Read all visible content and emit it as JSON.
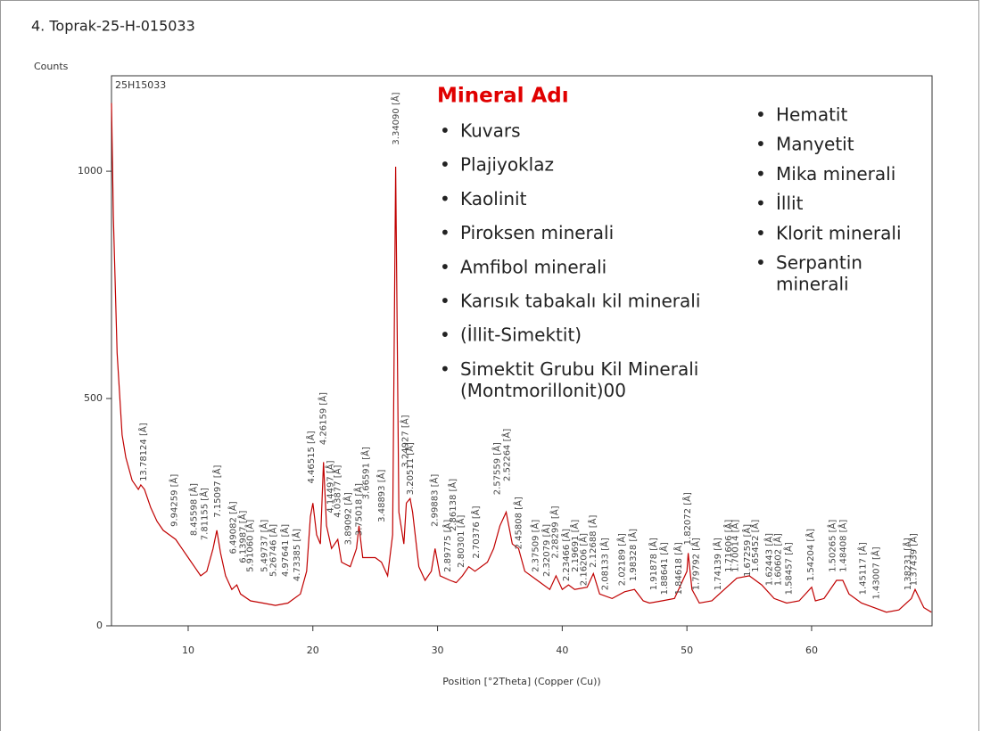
{
  "chart_data": {
    "type": "line",
    "title": "4. Toprak-25-H-015033",
    "y_label": "Counts",
    "x_label": "Position [°2Theta] (Copper (Cu))",
    "sample_label": "25H15033",
    "xlim": [
      3.85,
      69.66
    ],
    "ylim": [
      0,
      1210
    ],
    "xticks": [
      10,
      20,
      30,
      40,
      50,
      60
    ],
    "yticks": [
      0,
      500,
      1000
    ],
    "grid": false,
    "series": [
      {
        "name": "25H15033",
        "color": "#c00000",
        "x": [
          3.85,
          4.0,
          4.3,
          4.7,
          5,
          5.5,
          6,
          6.2,
          6.5,
          7,
          7.5,
          8,
          8.5,
          9,
          9.5,
          10,
          10.5,
          11,
          11.5,
          12,
          12.3,
          12.6,
          13,
          13.5,
          13.9,
          14.2,
          15,
          16,
          17,
          18,
          19,
          19.5,
          19.8,
          20,
          20.3,
          20.6,
          20.85,
          21.1,
          21.5,
          22,
          22.3,
          23,
          23.5,
          23.7,
          24,
          24.5,
          25,
          25.5,
          26,
          26.4,
          26.64,
          26.9,
          27.3,
          27.5,
          27.8,
          28,
          28.5,
          29,
          29.5,
          29.8,
          30.2,
          31,
          31.5,
          32,
          32.5,
          33,
          34,
          34.5,
          35,
          35.5,
          36,
          36.5,
          37,
          38,
          39,
          39.5,
          40,
          40.5,
          41,
          42,
          42.5,
          43,
          44,
          45,
          45.8,
          46.5,
          47,
          48,
          49,
          50,
          50.1,
          50.4,
          51,
          52,
          53,
          54,
          55,
          56,
          57,
          58,
          59,
          60,
          60.3,
          61,
          62,
          62.5,
          63,
          64,
          65,
          66,
          67,
          68,
          68.3,
          69,
          69.6
        ],
        "values": [
          1150,
          900,
          600,
          420,
          370,
          320,
          300,
          310,
          300,
          260,
          230,
          210,
          200,
          190,
          170,
          150,
          130,
          110,
          120,
          170,
          210,
          160,
          110,
          80,
          90,
          70,
          55,
          50,
          45,
          50,
          70,
          120,
          240,
          270,
          200,
          180,
          360,
          220,
          170,
          190,
          140,
          130,
          170,
          220,
          150,
          150,
          150,
          140,
          110,
          200,
          1010,
          250,
          180,
          270,
          280,
          250,
          130,
          100,
          120,
          170,
          110,
          100,
          95,
          110,
          130,
          120,
          140,
          170,
          220,
          250,
          180,
          170,
          120,
          100,
          80,
          110,
          80,
          90,
          80,
          85,
          115,
          70,
          60,
          75,
          80,
          55,
          50,
          55,
          60,
          120,
          160,
          80,
          50,
          55,
          80,
          105,
          110,
          90,
          60,
          50,
          55,
          85,
          55,
          60,
          100,
          100,
          70,
          50,
          40,
          30,
          35,
          60,
          80,
          40,
          30
        ]
      }
    ],
    "annotations": [
      {
        "text": "13.78124 [Å]",
        "x": 6.41,
        "y": 310
      },
      {
        "text": "9.94259 [Å]",
        "x": 8.89,
        "y": 210
      },
      {
        "text": "8.45598 [Å]",
        "x": 10.45,
        "y": 190
      },
      {
        "text": "7.81155 [Å]",
        "x": 11.32,
        "y": 180
      },
      {
        "text": "7.15097 [Å]",
        "x": 12.37,
        "y": 230
      },
      {
        "text": "6.49082 [Å]",
        "x": 13.63,
        "y": 150
      },
      {
        "text": "6.13987 [Å]",
        "x": 14.41,
        "y": 130
      },
      {
        "text": "5.91060 [Å]",
        "x": 14.98,
        "y": 110
      },
      {
        "text": "5.49737 [Å]",
        "x": 16.11,
        "y": 110
      },
      {
        "text": "5.26746 [Å]",
        "x": 16.82,
        "y": 100
      },
      {
        "text": "4.97641 [Å]",
        "x": 17.81,
        "y": 100
      },
      {
        "text": "4.73385 [Å]",
        "x": 18.73,
        "y": 90
      },
      {
        "text": "4.46515 [Å]",
        "x": 19.87,
        "y": 305
      },
      {
        "text": "4.26159 [Å]",
        "x": 20.83,
        "y": 390
      },
      {
        "text": "4.14497 [Å]",
        "x": 21.42,
        "y": 240
      },
      {
        "text": "4.03877 [Å]",
        "x": 21.99,
        "y": 230
      },
      {
        "text": "3.89092 [Å]",
        "x": 22.84,
        "y": 170
      },
      {
        "text": "3.75018 [Å]",
        "x": 23.71,
        "y": 190
      },
      {
        "text": "3.66591 [Å]",
        "x": 24.26,
        "y": 270
      },
      {
        "text": "3.48893 [Å]",
        "x": 25.51,
        "y": 220
      },
      {
        "text": "3.34090 [Å]",
        "x": 26.66,
        "y": 1050
      },
      {
        "text": "3.24927 [Å]",
        "x": 27.43,
        "y": 340
      },
      {
        "text": "3.20511 [Å]",
        "x": 27.81,
        "y": 280
      },
      {
        "text": "2.99883 [Å]",
        "x": 29.77,
        "y": 210
      },
      {
        "text": "2.89775 [Å]",
        "x": 30.83,
        "y": 110
      },
      {
        "text": "2.86138 [Å]",
        "x": 31.23,
        "y": 200
      },
      {
        "text": "2.80301 [Å]",
        "x": 31.9,
        "y": 120
      },
      {
        "text": "2.70376 [Å]",
        "x": 33.1,
        "y": 140
      },
      {
        "text": "2.57559 [Å]",
        "x": 34.8,
        "y": 280
      },
      {
        "text": "2.52264 [Å]",
        "x": 35.56,
        "y": 310
      },
      {
        "text": "2.45808 [Å]",
        "x": 36.52,
        "y": 160
      },
      {
        "text": "2.37509 [Å]",
        "x": 37.85,
        "y": 110
      },
      {
        "text": "2.32079 [Å]",
        "x": 38.77,
        "y": 100
      },
      {
        "text": "2.28299 [Å]",
        "x": 39.44,
        "y": 140
      },
      {
        "text": "2.23466 [Å]",
        "x": 40.33,
        "y": 90
      },
      {
        "text": "2.19691 [Å]",
        "x": 41.05,
        "y": 110
      },
      {
        "text": "2.16206 [Å]",
        "x": 41.74,
        "y": 80
      },
      {
        "text": "2.12688 [Å]",
        "x": 42.47,
        "y": 120
      },
      {
        "text": "2.08133 [Å]",
        "x": 43.44,
        "y": 70
      },
      {
        "text": "2.02189 [Å]",
        "x": 44.79,
        "y": 80
      },
      {
        "text": "1.98328 [Å]",
        "x": 45.71,
        "y": 90
      },
      {
        "text": "1.91878 [Å]",
        "x": 47.34,
        "y": 70
      },
      {
        "text": "1.88641 [Å]",
        "x": 48.2,
        "y": 60
      },
      {
        "text": "1.84618 [Å]",
        "x": 49.33,
        "y": 60
      },
      {
        "text": "1.82072 [Å]",
        "x": 50.06,
        "y": 170
      },
      {
        "text": "1.79792 [Å]",
        "x": 50.74,
        "y": 70
      },
      {
        "text": "1.74139 [Å]",
        "x": 52.51,
        "y": 70
      },
      {
        "text": "1.71606 [Å]",
        "x": 53.34,
        "y": 110
      },
      {
        "text": "1.70014 [Å]",
        "x": 53.88,
        "y": 110
      },
      {
        "text": "1.67259 [Å]",
        "x": 54.85,
        "y": 100
      },
      {
        "text": "1.65452 [Å]",
        "x": 55.5,
        "y": 110
      },
      {
        "text": "1.62443 [Å]",
        "x": 56.62,
        "y": 80
      },
      {
        "text": "1.60602 [Å]",
        "x": 57.33,
        "y": 80
      },
      {
        "text": "1.58457 [Å]",
        "x": 58.17,
        "y": 60
      },
      {
        "text": "1.54204 [Å]",
        "x": 59.94,
        "y": 90
      },
      {
        "text": "1.50265 [Å]",
        "x": 61.68,
        "y": 110
      },
      {
        "text": "1.48408 [Å]",
        "x": 62.53,
        "y": 110
      },
      {
        "text": "1.45117 [Å]",
        "x": 64.12,
        "y": 60
      },
      {
        "text": "1.43007 [Å]",
        "x": 65.18,
        "y": 50
      },
      {
        "text": "1.38231 [Å]",
        "x": 67.73,
        "y": 70
      },
      {
        "text": "1.37439 [Å]",
        "x": 68.18,
        "y": 80
      }
    ]
  },
  "minerals": {
    "title": "Mineral Adı",
    "column1": [
      "Kuvars",
      "Plajiyoklaz",
      "Kaolinit",
      "Piroksen minerali",
      "Amfibol minerali",
      "Karısık tabakalı kil minerali",
      "(İllit-Simektit)",
      [
        "Simektit Grubu Kil Minerali",
        "(Montmorillonit)00"
      ]
    ],
    "column2": [
      "Hematit",
      "Manyetit",
      "Mika minerali",
      "İllit",
      "Klorit minerali",
      [
        "Serpantin",
        "minerali"
      ]
    ]
  }
}
